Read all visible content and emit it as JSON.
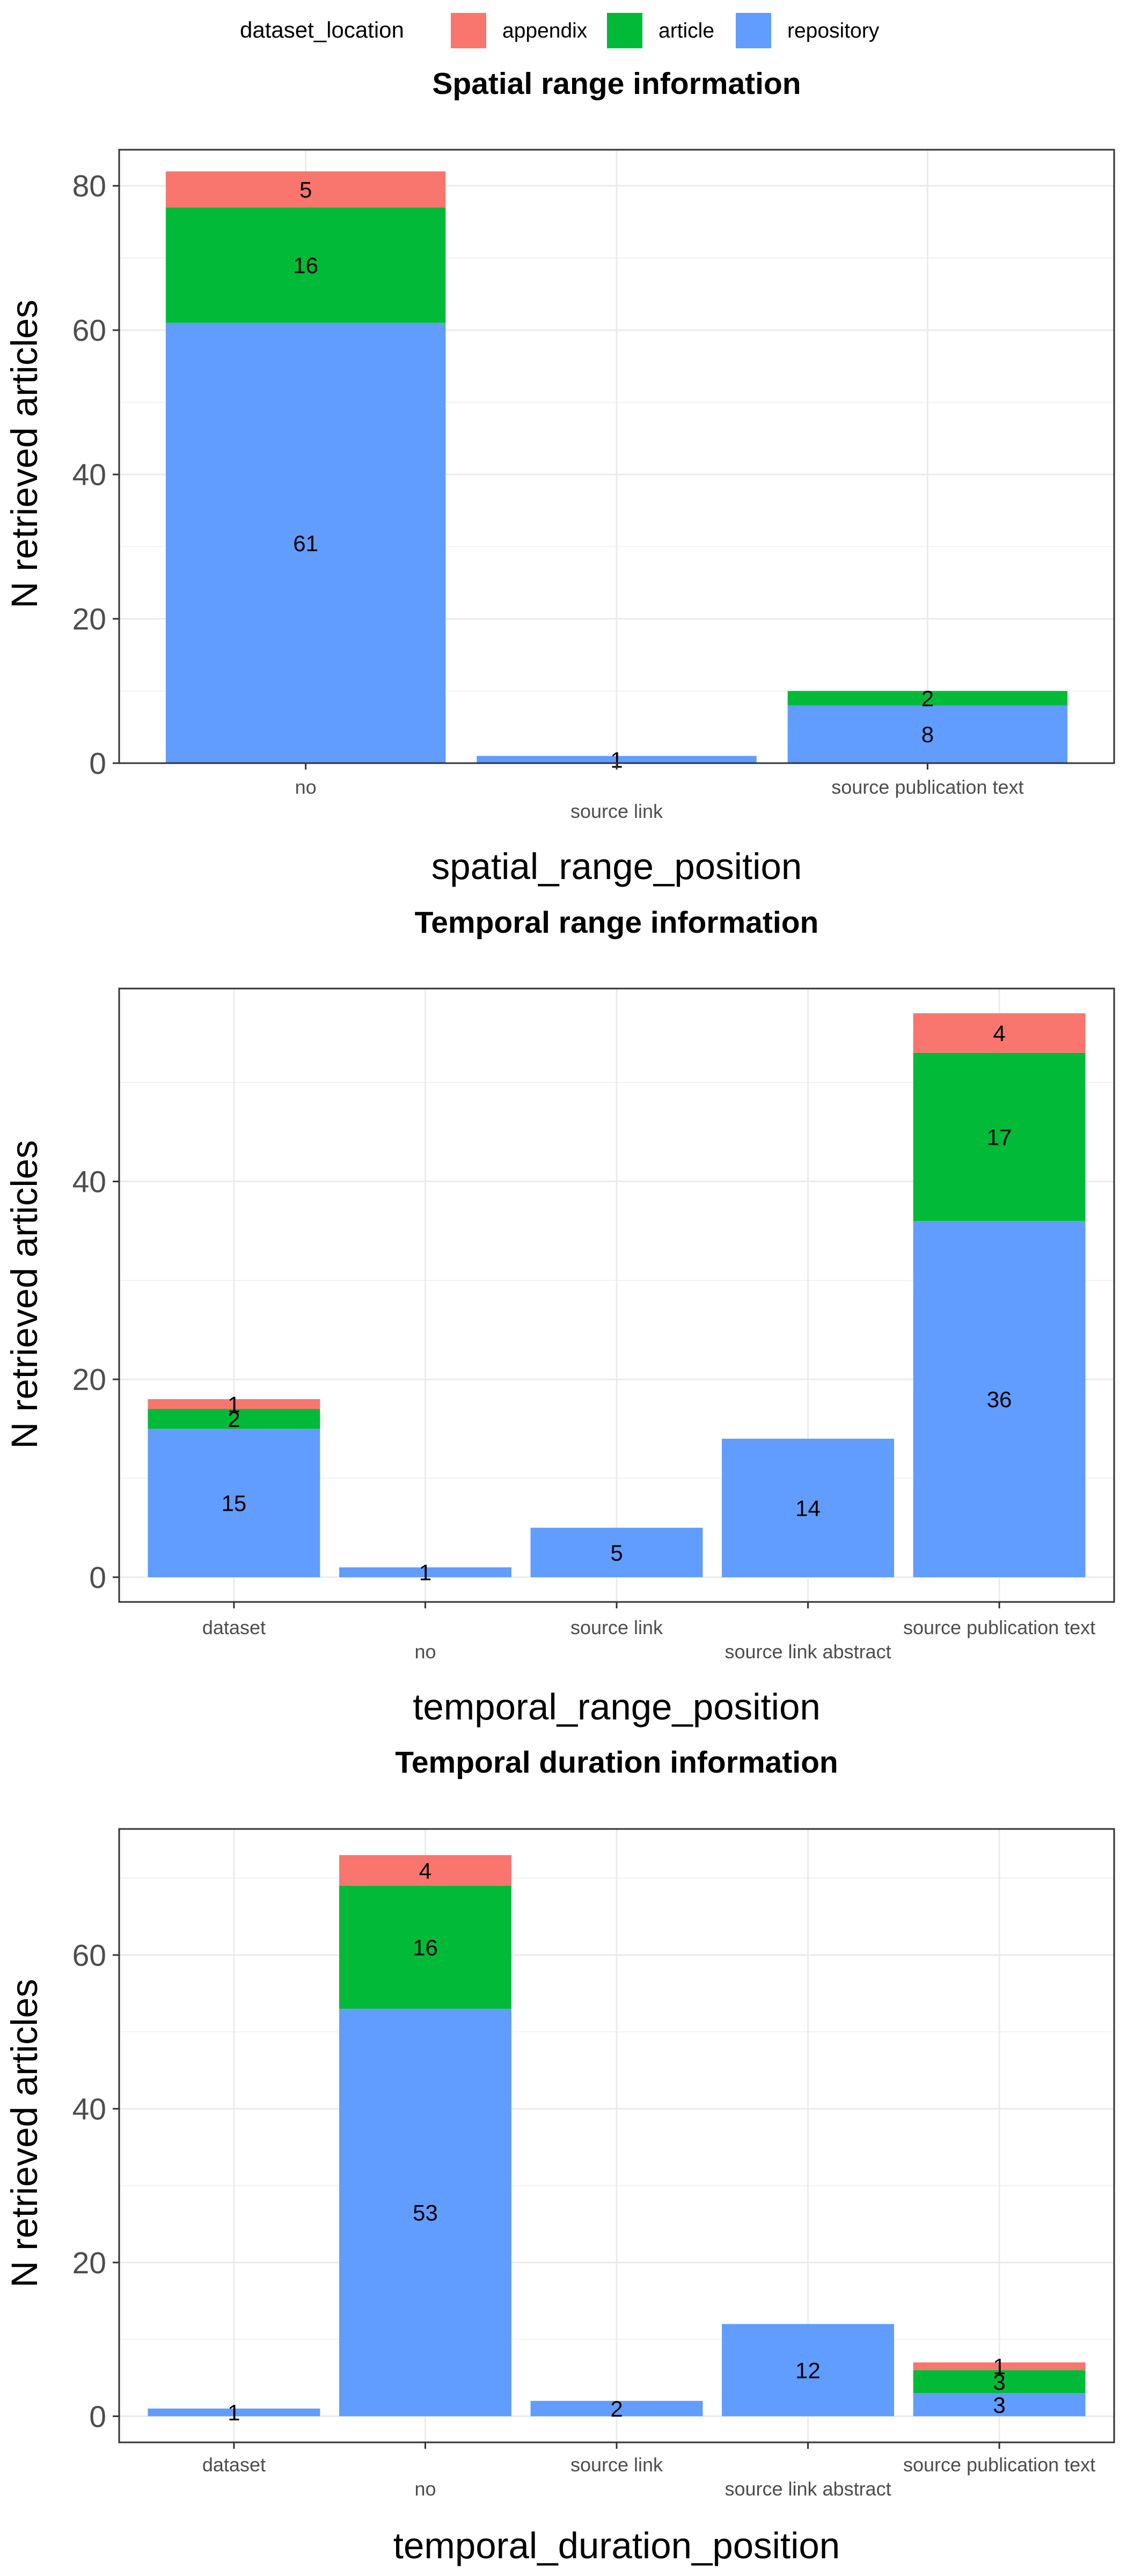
{
  "legend": {
    "title": "dataset_location",
    "items": [
      {
        "label": "appendix",
        "color": "#F8766D"
      },
      {
        "label": "article",
        "color": "#00BA38"
      },
      {
        "label": "repository",
        "color": "#619CFF"
      }
    ]
  },
  "chart_data": [
    {
      "type": "bar",
      "stacked": true,
      "title": "Spatial range information",
      "xlabel": "spatial_range_position",
      "ylabel": "N retrieved articles",
      "categories": [
        "no",
        "source link",
        "source publication text"
      ],
      "ylim": [
        0,
        85
      ],
      "yticks": [
        0,
        20,
        40,
        60,
        80
      ],
      "series": [
        {
          "name": "repository",
          "values": [
            61,
            1,
            8
          ]
        },
        {
          "name": "article",
          "values": [
            16,
            0,
            2
          ]
        },
        {
          "name": "appendix",
          "values": [
            5,
            0,
            0
          ]
        }
      ],
      "grid": true
    },
    {
      "type": "bar",
      "stacked": true,
      "title": "Temporal range information",
      "xlabel": "temporal_range_position",
      "ylabel": "N retrieved articles",
      "categories": [
        "dataset",
        "no",
        "source link",
        "source link abstract",
        "source publication text"
      ],
      "ylim": [
        -2.5,
        59.5
      ],
      "yticks": [
        0,
        20,
        40
      ],
      "series": [
        {
          "name": "repository",
          "values": [
            15,
            1,
            5,
            14,
            36
          ]
        },
        {
          "name": "article",
          "values": [
            2,
            0,
            0,
            0,
            17
          ]
        },
        {
          "name": "appendix",
          "values": [
            1,
            0,
            0,
            0,
            4
          ]
        }
      ],
      "grid": true
    },
    {
      "type": "bar",
      "stacked": true,
      "title": "Temporal duration information",
      "xlabel": "temporal_duration_position",
      "ylabel": "N retrieved articles",
      "categories": [
        "dataset",
        "no",
        "source link",
        "source link abstract",
        "source publication text"
      ],
      "ylim": [
        -3.4,
        76.4
      ],
      "yticks": [
        0,
        20,
        40,
        60
      ],
      "series": [
        {
          "name": "repository",
          "values": [
            1,
            53,
            2,
            12,
            3
          ]
        },
        {
          "name": "article",
          "values": [
            0,
            16,
            0,
            0,
            3
          ]
        },
        {
          "name": "appendix",
          "values": [
            0,
            4,
            0,
            0,
            1
          ]
        }
      ],
      "grid": true
    }
  ]
}
